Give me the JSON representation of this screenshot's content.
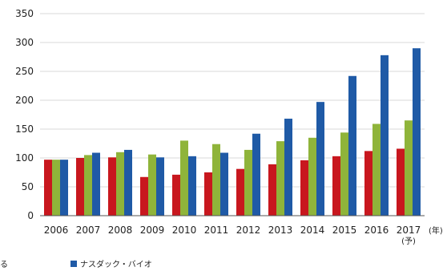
{
  "chart_data": {
    "type": "bar",
    "categories": [
      "2006",
      "2007",
      "2008",
      "2009",
      "2010",
      "2011",
      "2012",
      "2013",
      "2014",
      "2015",
      "2016",
      "2017"
    ],
    "category_sublabels": [
      "",
      "",
      "",
      "",
      "",
      "",
      "",
      "",
      "",
      "",
      "",
      "(予)"
    ],
    "x_unit_label": "(年)",
    "series": [
      {
        "name": "",
        "color": "#c8171e",
        "values": [
          97,
          100,
          101,
          67,
          71,
          75,
          81,
          89,
          96,
          103,
          112,
          116
        ]
      },
      {
        "name": "",
        "color": "#8fb43a",
        "values": [
          97,
          105,
          110,
          106,
          130,
          124,
          114,
          129,
          135,
          144,
          159,
          165
        ]
      },
      {
        "name": "ナスダック・バイオ",
        "color": "#1f5aa6",
        "values": [
          97,
          109,
          114,
          101,
          103,
          109,
          142,
          168,
          197,
          242,
          278,
          290
        ]
      }
    ],
    "yticks": [
      0,
      50,
      100,
      150,
      200,
      250,
      300,
      350
    ],
    "ylim": [
      0,
      350
    ],
    "title": "",
    "xlabel": "",
    "ylabel": "",
    "grid": true,
    "legend_position": "bottom"
  },
  "legend": {
    "left_partial": "る",
    "item_label": "ナスダック・バイオ"
  }
}
